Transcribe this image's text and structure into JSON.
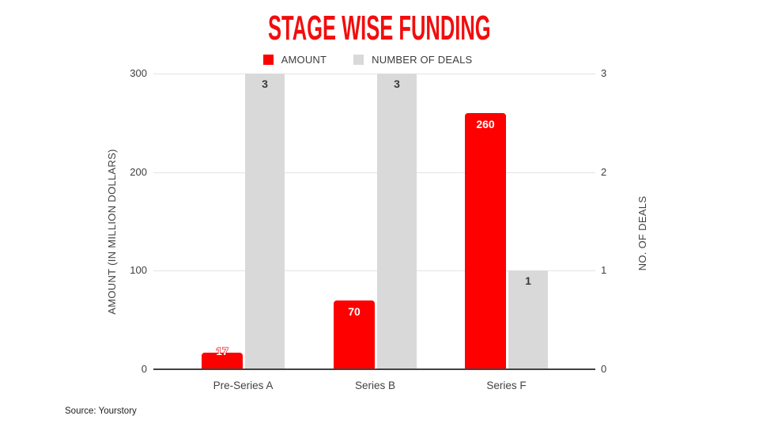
{
  "title": "STAGE WISE FUNDING",
  "source": "Source: Yourstory",
  "colors": {
    "title_red": "#f20d0d",
    "amount_bar": "#fe0000",
    "deals_bar": "#d9d9d9",
    "gridline": "#e3e3e3",
    "baseline": "#424242",
    "text_dark": "#424242"
  },
  "chart_data": {
    "type": "bar",
    "title": "STAGE WISE FUNDING",
    "categories": [
      "Pre-Series A",
      "Series B",
      "Series F"
    ],
    "series": [
      {
        "name": "AMOUNT",
        "axis": "left",
        "color": "#fe0000",
        "values": [
          17,
          70,
          260
        ]
      },
      {
        "name": "NUMBER OF DEALS",
        "axis": "right",
        "color": "#d9d9d9",
        "values": [
          3,
          3,
          1
        ]
      }
    ],
    "left_axis": {
      "label": "AMOUNT (IN MILLION DOLLARS)",
      "ticks": [
        0,
        100,
        200,
        300
      ],
      "range": [
        0,
        300
      ]
    },
    "right_axis": {
      "label": "NO. OF DEALS",
      "ticks": [
        0,
        1,
        2,
        3
      ],
      "range": [
        0,
        3
      ]
    },
    "grid": true,
    "legend_position": "top",
    "source": "Source: Yourstory"
  }
}
